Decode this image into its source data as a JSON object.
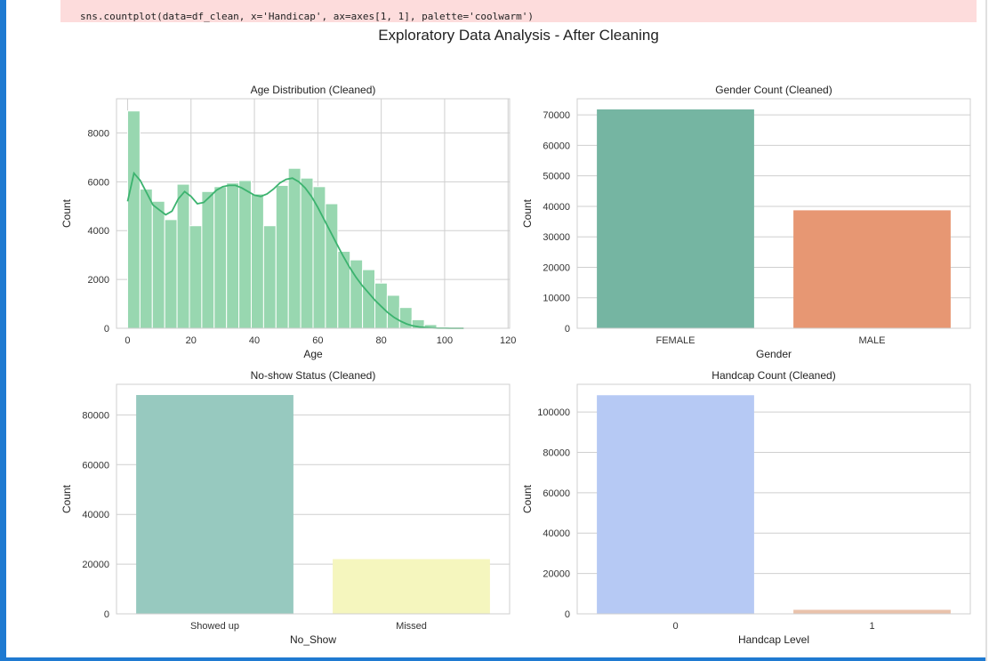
{
  "cell": {
    "stderr_line": "sns.countplot(data=df_clean, x='Handicap', ax=axes[1, 1], palette='coolwarm')"
  },
  "figure": {
    "suptitle": "Exploratory Data Analysis - After Cleaning"
  },
  "colors": {
    "hist_fill": "#98d7b0",
    "kde_line": "#3cb36f",
    "female": "#75b5a2",
    "male": "#e79773",
    "showed_up": "#97c9bf",
    "missed": "#f5f6be",
    "handcap_0": "#b6c9f4",
    "handcap_1": "#e9c2ab",
    "grid": "#cfcfcf",
    "accent_bar": "#1f7ad1",
    "stderr_bg": "#fddcdc"
  },
  "chart_data": [
    {
      "id": "age",
      "type": "bar",
      "title": "Age Distribution (Cleaned)",
      "xlabel": "Age",
      "ylabel": "Count",
      "xlim": [
        -3.5,
        120.5
      ],
      "ylim": [
        0,
        9400
      ],
      "xticks": [
        0,
        20,
        40,
        60,
        80,
        100,
        120
      ],
      "yticks": [
        0,
        2000,
        4000,
        6000,
        8000
      ],
      "bin_width": 3.9,
      "bins_start": [
        0,
        3.9,
        7.8,
        11.7,
        15.6,
        19.5,
        23.4,
        27.3,
        31.2,
        35.1,
        39.0,
        42.9,
        46.8,
        50.7,
        54.6,
        58.5,
        62.4,
        66.3,
        70.2,
        74.1,
        78.0,
        81.9,
        85.8,
        89.7,
        93.6,
        97.5,
        101.4,
        105.3,
        109.2,
        113.1
      ],
      "bins_count": [
        8900,
        5700,
        5200,
        4450,
        5900,
        4200,
        5600,
        5800,
        5950,
        6050,
        5500,
        4200,
        5850,
        6550,
        6150,
        5800,
        5100,
        3150,
        2800,
        2400,
        1850,
        1350,
        850,
        350,
        150,
        50,
        20,
        0,
        0,
        10
      ],
      "kde": {
        "x": [
          0,
          2,
          4,
          6,
          8,
          10,
          12,
          14,
          16,
          18,
          20,
          22,
          24,
          26,
          28,
          30,
          32,
          34,
          36,
          38,
          40,
          42,
          44,
          46,
          48,
          50,
          52,
          54,
          56,
          58,
          60,
          62,
          64,
          66,
          68,
          70,
          72,
          74,
          76,
          78,
          80,
          82,
          84,
          86,
          88,
          90,
          92,
          94,
          96,
          98,
          100,
          102,
          104,
          106
        ],
        "y": [
          5200,
          6350,
          6050,
          5550,
          5050,
          4850,
          4650,
          4800,
          5300,
          5600,
          5400,
          5100,
          5150,
          5400,
          5650,
          5800,
          5850,
          5850,
          5750,
          5600,
          5450,
          5400,
          5500,
          5700,
          5950,
          6100,
          6150,
          6000,
          5750,
          5400,
          4950,
          4450,
          3950,
          3450,
          2950,
          2500,
          2100,
          1750,
          1450,
          1150,
          900,
          650,
          450,
          300,
          180,
          100,
          55,
          30,
          15,
          5,
          2,
          0,
          0,
          0
        ]
      }
    },
    {
      "id": "gender",
      "type": "bar",
      "title": "Gender Count (Cleaned)",
      "xlabel": "Gender",
      "ylabel": "Count",
      "categories": [
        "FEMALE",
        "MALE"
      ],
      "values": [
        71800,
        38700
      ],
      "ylim": [
        0,
        75300
      ],
      "yticks": [
        0,
        10000,
        20000,
        30000,
        40000,
        50000,
        60000,
        70000
      ]
    },
    {
      "id": "noshow",
      "type": "bar",
      "title": "No-show Status (Cleaned)",
      "xlabel": "No_Show",
      "ylabel": "Count",
      "categories": [
        "Showed up",
        "Missed"
      ],
      "values": [
        88000,
        22000
      ],
      "ylim": [
        0,
        92300
      ],
      "yticks": [
        0,
        20000,
        40000,
        60000,
        80000
      ]
    },
    {
      "id": "handcap",
      "type": "bar",
      "title": "Handcap Count (Cleaned)",
      "xlabel": "Handcap Level",
      "ylabel": "Count",
      "categories": [
        "0",
        "1"
      ],
      "values": [
        108300,
        2000
      ],
      "ylim": [
        0,
        113700
      ],
      "yticks": [
        0,
        20000,
        40000,
        60000,
        80000,
        100000
      ]
    }
  ]
}
